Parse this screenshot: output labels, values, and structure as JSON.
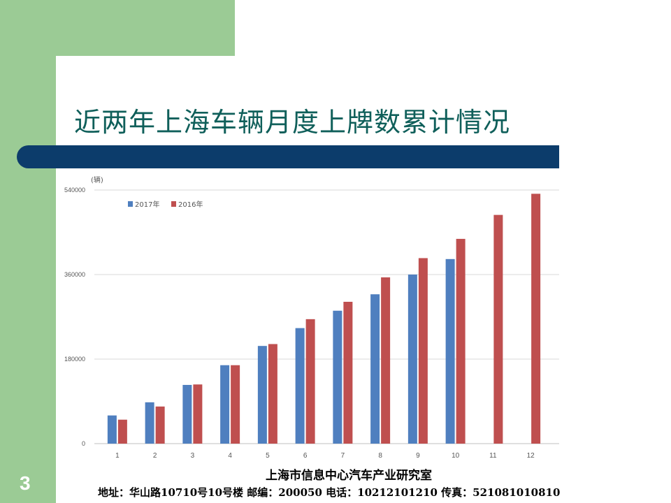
{
  "slide": {
    "title": "近两年上海车辆月度上牌数累计情况",
    "page_number": "3",
    "footer_org": "上海市信息中心汽车产业研究室",
    "footer_address": "地址：华山路10710号10号楼   邮编：200050  电话：10212101210  传真：521081010810"
  },
  "colors": {
    "green": "#9bcb95",
    "navy_band": "#0c3c6b",
    "title_text": "#0f5f5a",
    "series_2017": "#4f7fbf",
    "series_2016": "#bf4f4f",
    "grid": "#d9d9d9",
    "axis_text": "#555555"
  },
  "chart_data": {
    "type": "bar",
    "ylabel": "(辆)",
    "categories": [
      "1",
      "2",
      "3",
      "4",
      "5",
      "6",
      "7",
      "8",
      "9",
      "10",
      "11",
      "12"
    ],
    "ylim": [
      0,
      540000
    ],
    "yticks": [
      0,
      180000,
      360000,
      540000
    ],
    "ytick_labels": [
      "0",
      "180000",
      "360000",
      "540000"
    ],
    "grid": true,
    "legend_position": "top-left",
    "series": [
      {
        "name": "2017年",
        "color": "#4f7fbf",
        "values": [
          60000,
          88000,
          125000,
          167000,
          208000,
          246000,
          283000,
          318000,
          360000,
          393000,
          null,
          null
        ]
      },
      {
        "name": "2016年",
        "color": "#bf4f4f",
        "values": [
          51000,
          79000,
          126000,
          167000,
          212000,
          265000,
          302000,
          354000,
          395000,
          436000,
          487000,
          532000
        ]
      }
    ]
  }
}
